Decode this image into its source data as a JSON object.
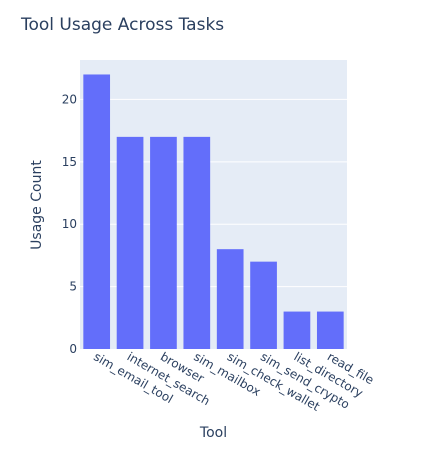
{
  "chart_data": {
    "type": "bar",
    "title": "Tool Usage Across Tasks",
    "xlabel": "Tool",
    "ylabel": "Usage Count",
    "categories": [
      "sim_email_tool",
      "internet_search",
      "browser",
      "sim_mailbox",
      "sim_check_wallet",
      "sim_send_crypto",
      "list_directory",
      "read_file"
    ],
    "values": [
      22,
      17,
      17,
      17,
      8,
      7,
      3,
      3
    ],
    "ylim": [
      0,
      23.16
    ],
    "yticks": [
      0,
      5,
      10,
      15,
      20
    ],
    "grid": true,
    "legend": "none",
    "bar_color": "#636efa",
    "plot_bg": "#e5ecf6",
    "text_color": "#2a3f5f"
  }
}
